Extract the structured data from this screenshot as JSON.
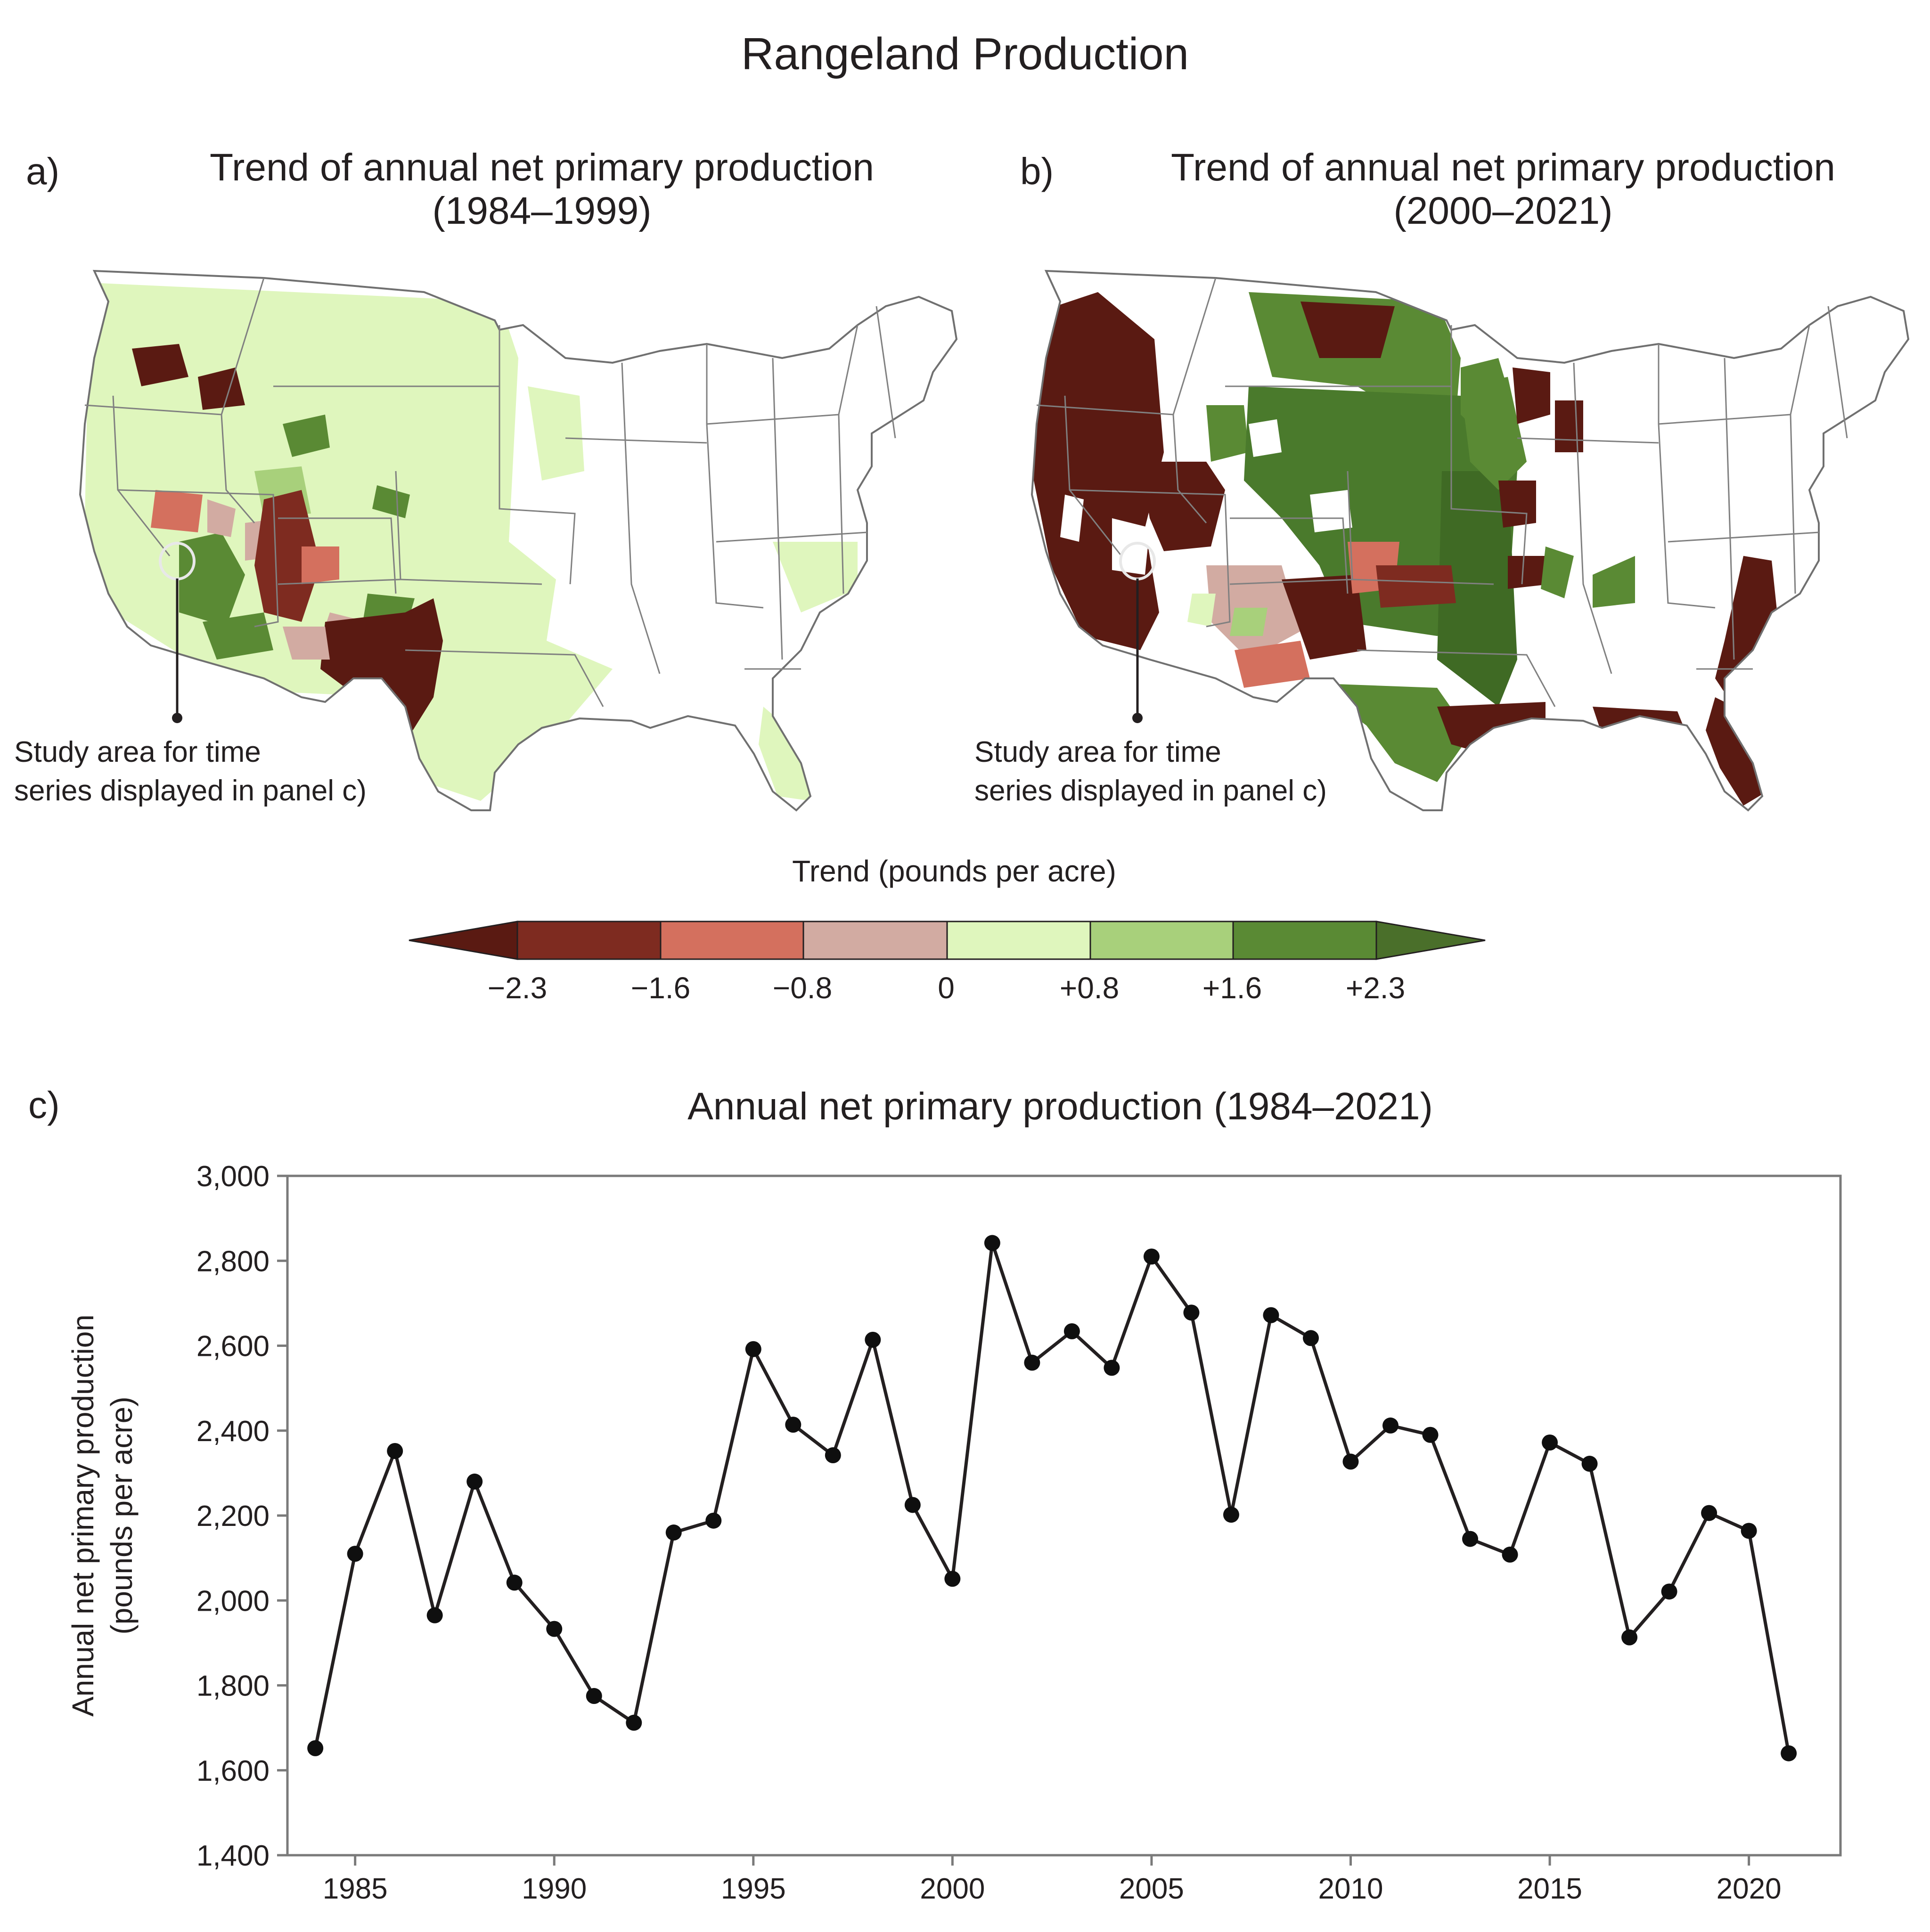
{
  "header": {
    "title": "Rangeland Production"
  },
  "panel_a": {
    "label": "a)",
    "title_line1": "Trend of annual net primary production",
    "title_line2": "(1984–1999)",
    "note_line1": "Study area for time",
    "note_line2": "series displayed in panel c)"
  },
  "panel_b": {
    "label": "b)",
    "title_line1": "Trend of annual net primary production",
    "title_line2": "(2000–2021)",
    "note_line1": "Study area for time",
    "note_line2": "series displayed in panel c)"
  },
  "colorbar": {
    "title": "Trend (pounds per acre)",
    "ticks": [
      "−2.3",
      "−1.6",
      "−0.8",
      "0",
      "+0.8",
      "+1.6",
      "+2.3"
    ],
    "colors": [
      "#5a1a12",
      "#7e2b20",
      "#d4705e",
      "#d2aba2",
      "#dff6bd",
      "#a8d07b",
      "#5a8a34",
      "#4a6f2a"
    ]
  },
  "chart_data": {
    "type": "line",
    "label": "c)",
    "title": "Annual net primary production (1984–2021)",
    "ylabel_line1": "Annual net primary production",
    "ylabel_line2": "(pounds per acre)",
    "xlabel": "",
    "xlim": [
      1983.3,
      2022.3
    ],
    "ylim": [
      1400,
      3000
    ],
    "x_ticks": [
      1985,
      1990,
      1995,
      2000,
      2005,
      2010,
      2015,
      2020
    ],
    "y_ticks": [
      1400,
      1600,
      1800,
      2000,
      2200,
      2400,
      2600,
      2800,
      3000
    ],
    "y_tick_labels": [
      "1,400",
      "1,600",
      "1,800",
      "2,000",
      "2,200",
      "2,400",
      "2,600",
      "2,800",
      "3,000"
    ],
    "grid": false,
    "x": [
      1984,
      1985,
      1986,
      1987,
      1988,
      1989,
      1990,
      1991,
      1992,
      1993,
      1994,
      1995,
      1996,
      1997,
      1998,
      1999,
      2000,
      2001,
      2002,
      2003,
      2004,
      2005,
      2006,
      2007,
      2008,
      2009,
      2010,
      2011,
      2012,
      2013,
      2014,
      2015,
      2016,
      2017,
      2018,
      2019,
      2020,
      2021
    ],
    "series": [
      {
        "values": [
          1652,
          2110,
          2352,
          1965,
          2280,
          2042,
          1933,
          1775,
          1712,
          2160,
          2188,
          2592,
          2414,
          2342,
          2614,
          2225,
          2051,
          2842,
          2560,
          2634,
          2548,
          2810,
          2678,
          2202,
          2672,
          2618,
          2327,
          2412,
          2390,
          2145,
          2108,
          2372,
          2322,
          1913,
          2021,
          2206,
          2164,
          1640
        ]
      }
    ]
  }
}
